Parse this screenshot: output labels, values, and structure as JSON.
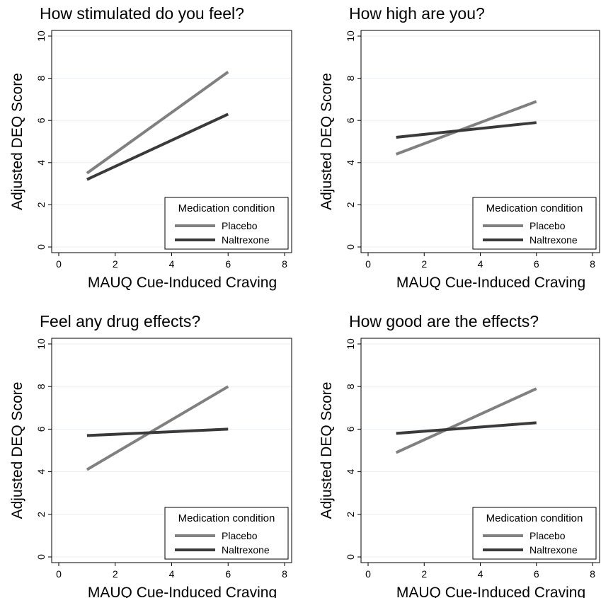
{
  "chart_data": [
    {
      "type": "line",
      "title": "How stimulated do you feel?",
      "xlabel": "MAUQ Cue-Induced Craving",
      "ylabel": "Adjusted DEQ Score",
      "xlim": [
        0,
        8
      ],
      "ylim": [
        0,
        10
      ],
      "xticks": [
        "0",
        "2",
        "4",
        "6",
        "8"
      ],
      "yticks": [
        "0",
        "2",
        "4",
        "6",
        "8",
        "10"
      ],
      "grid": "horizontal",
      "legend": {
        "title": "Medication condition",
        "position": "bottom-right"
      },
      "series": [
        {
          "name": "Placebo",
          "color": "#808080",
          "x": [
            1,
            6
          ],
          "y": [
            3.5,
            8.3
          ]
        },
        {
          "name": "Naltrexone",
          "color": "#3a3a3a",
          "x": [
            1,
            6
          ],
          "y": [
            3.2,
            6.3
          ]
        }
      ]
    },
    {
      "type": "line",
      "title": "How high are you?",
      "xlabel": "MAUQ Cue-Induced Craving",
      "ylabel": "Adjusted DEQ Score",
      "xlim": [
        0,
        8
      ],
      "ylim": [
        0,
        10
      ],
      "xticks": [
        "0",
        "2",
        "4",
        "6",
        "8"
      ],
      "yticks": [
        "0",
        "2",
        "4",
        "6",
        "8",
        "10"
      ],
      "grid": "horizontal",
      "legend": {
        "title": "Medication condition",
        "position": "bottom-right"
      },
      "series": [
        {
          "name": "Placebo",
          "color": "#808080",
          "x": [
            1,
            6
          ],
          "y": [
            4.4,
            6.9
          ]
        },
        {
          "name": "Naltrexone",
          "color": "#3a3a3a",
          "x": [
            1,
            6
          ],
          "y": [
            5.2,
            5.9
          ]
        }
      ]
    },
    {
      "type": "line",
      "title": "Feel any drug effects?",
      "xlabel": "MAUQ Cue-Induced Craving",
      "ylabel": "Adjusted DEQ Score",
      "xlim": [
        0,
        8
      ],
      "ylim": [
        0,
        10
      ],
      "xticks": [
        "0",
        "2",
        "4",
        "6",
        "8"
      ],
      "yticks": [
        "0",
        "2",
        "4",
        "6",
        "8",
        "10"
      ],
      "grid": "horizontal",
      "legend": {
        "title": "Medication condition",
        "position": "bottom-right"
      },
      "series": [
        {
          "name": "Placebo",
          "color": "#808080",
          "x": [
            1,
            6
          ],
          "y": [
            4.1,
            8.0
          ]
        },
        {
          "name": "Naltrexone",
          "color": "#3a3a3a",
          "x": [
            1,
            6
          ],
          "y": [
            5.7,
            6.0
          ]
        }
      ]
    },
    {
      "type": "line",
      "title": "How good are the effects?",
      "xlabel": "MAUQ Cue-Induced Craving",
      "ylabel": "Adjusted DEQ Score",
      "xlim": [
        0,
        8
      ],
      "ylim": [
        0,
        10
      ],
      "xticks": [
        "0",
        "2",
        "4",
        "6",
        "8"
      ],
      "yticks": [
        "0",
        "2",
        "4",
        "6",
        "8",
        "10"
      ],
      "grid": "horizontal",
      "legend": {
        "title": "Medication condition",
        "position": "bottom-right"
      },
      "series": [
        {
          "name": "Placebo",
          "color": "#808080",
          "x": [
            1,
            6
          ],
          "y": [
            4.9,
            7.9
          ]
        },
        {
          "name": "Naltrexone",
          "color": "#3a3a3a",
          "x": [
            1,
            6
          ],
          "y": [
            5.8,
            6.3
          ]
        }
      ]
    }
  ]
}
